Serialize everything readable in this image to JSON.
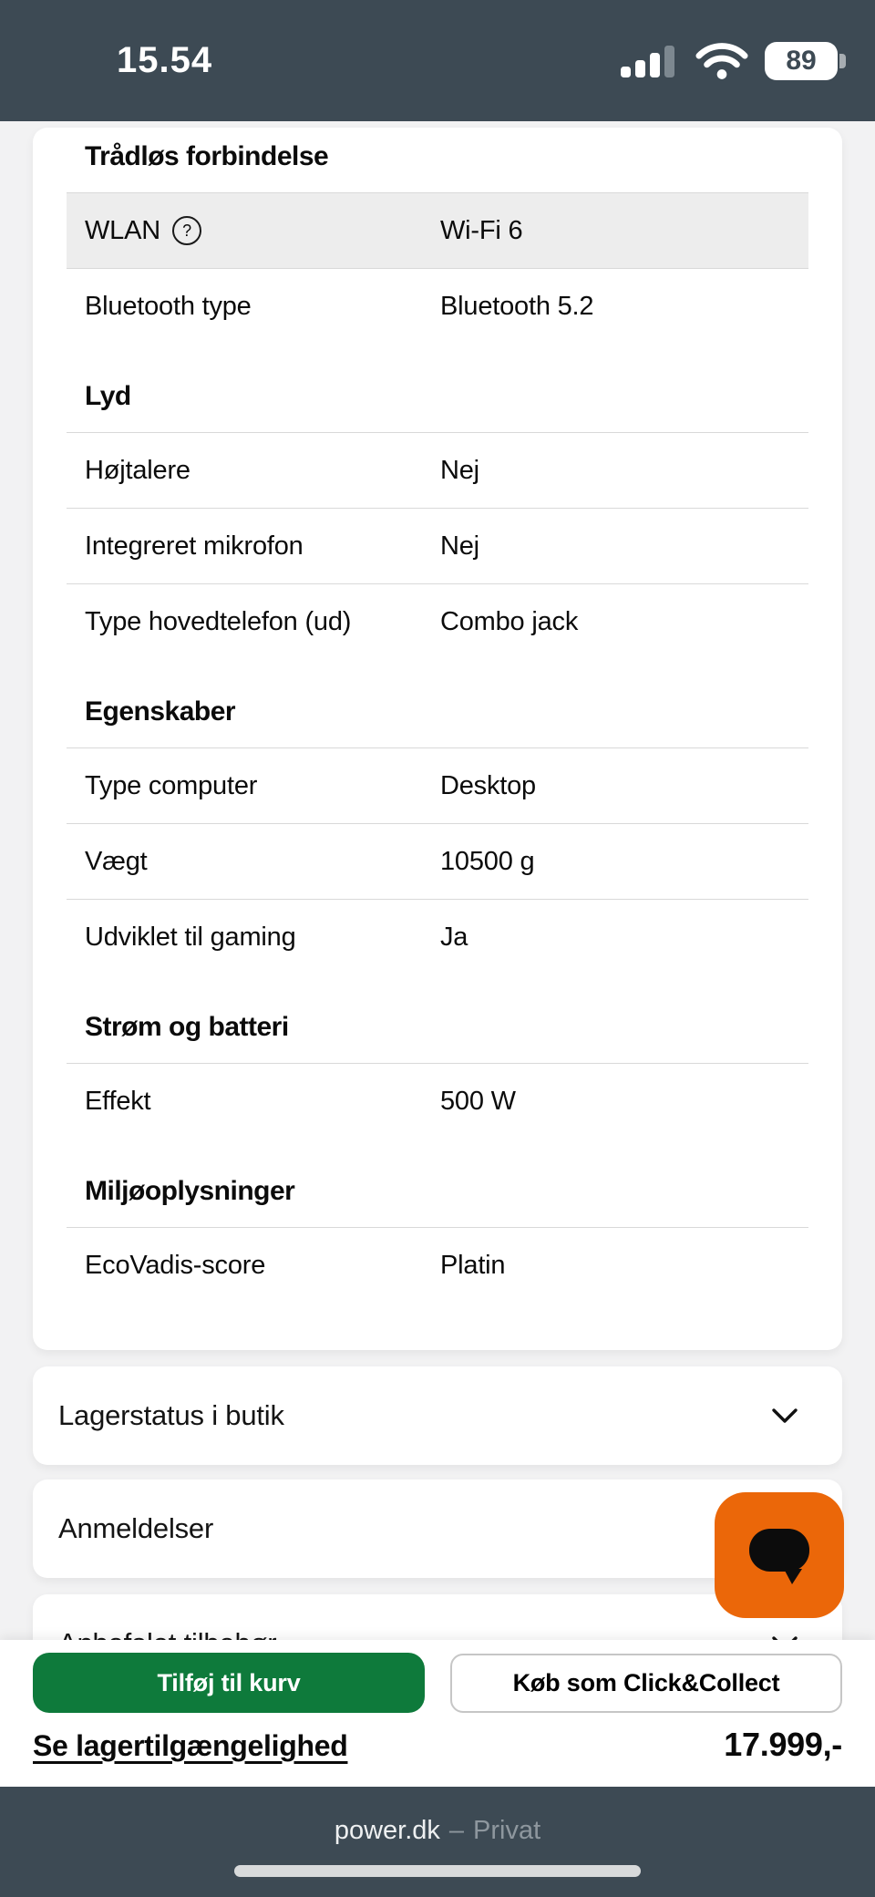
{
  "status_bar": {
    "time": "15.54",
    "battery": "89"
  },
  "specs": {
    "sections": [
      {
        "title": "Trådløs forbindelse",
        "rows": [
          {
            "label": "WLAN",
            "value": "Wi-Fi 6",
            "help": true,
            "highlight": true
          },
          {
            "label": "Bluetooth type",
            "value": "Bluetooth 5.2"
          }
        ]
      },
      {
        "title": "Lyd",
        "rows": [
          {
            "label": "Højtalere",
            "value": "Nej"
          },
          {
            "label": "Integreret mikrofon",
            "value": "Nej"
          },
          {
            "label": "Type hovedtelefon (ud)",
            "value": "Combo jack"
          }
        ]
      },
      {
        "title": "Egenskaber",
        "rows": [
          {
            "label": "Type computer",
            "value": "Desktop"
          },
          {
            "label": "Vægt",
            "value": "10500 g"
          },
          {
            "label": "Udviklet til gaming",
            "value": "Ja"
          }
        ]
      },
      {
        "title": "Strøm og batteri",
        "rows": [
          {
            "label": "Effekt",
            "value": "500 W"
          }
        ]
      },
      {
        "title": "Miljøoplysninger",
        "rows": [
          {
            "label": "EcoVadis-score",
            "value": "Platin"
          }
        ]
      }
    ]
  },
  "accordions": [
    {
      "label": "Lagerstatus i butik"
    },
    {
      "label": "Anmeldelser"
    },
    {
      "label": "Anbefalet tilbehør"
    }
  ],
  "help_glyph": "?",
  "bottom_bar": {
    "add_to_cart": "Tilføj til kurv",
    "click_collect": "Køb som Click&Collect",
    "stock_link": "Se lagertilgængelighed",
    "price": "17.999,-"
  },
  "browser_bar": {
    "site": "power.dk",
    "separator": "–",
    "mode": "Privat"
  },
  "colors": {
    "chrome_bar": "#3d4a54",
    "accent_green": "#0e7a3b",
    "accent_orange": "#eb6709",
    "row_highlight": "#ededed",
    "divider": "#d9d9d9"
  }
}
